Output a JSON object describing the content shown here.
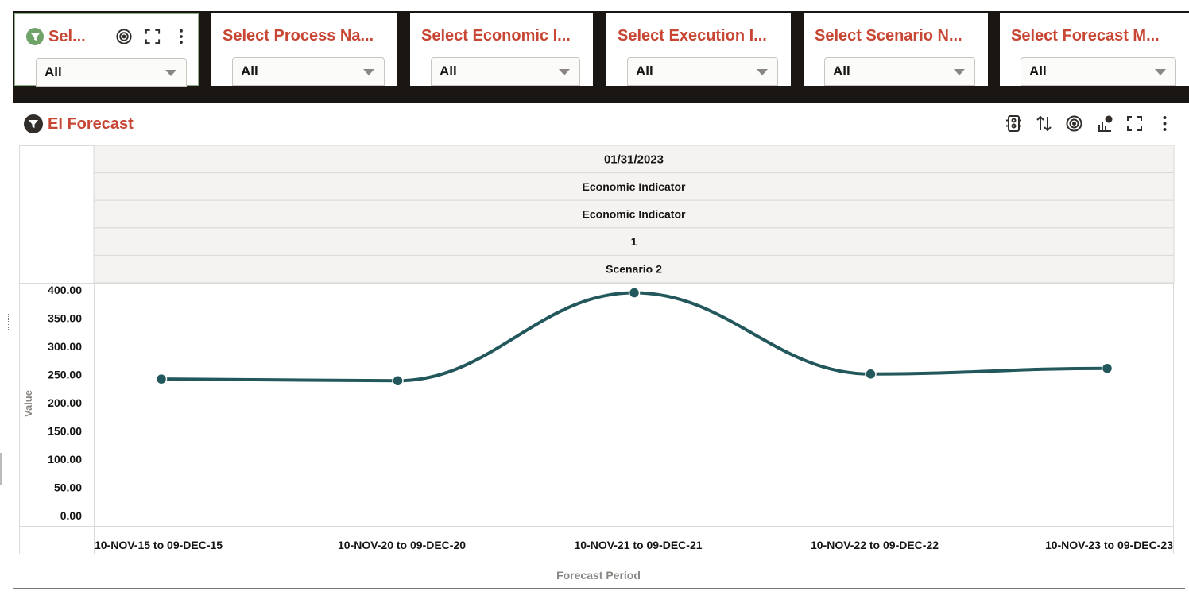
{
  "filters": [
    {
      "title": "Sel...",
      "value": "All",
      "has_icons": true
    },
    {
      "title": "Select Process Na...",
      "value": "All"
    },
    {
      "title": "Select Economic I...",
      "value": "All"
    },
    {
      "title": "Select Execution I...",
      "value": "All"
    },
    {
      "title": "Select Scenario N...",
      "value": "All"
    },
    {
      "title": "Select Forecast M...",
      "value": "All"
    }
  ],
  "panel": {
    "title": "EI Forecast",
    "tool_icons": [
      "legend-icon",
      "sort-icon",
      "target-icon",
      "chart-type-icon",
      "fullscreen-icon",
      "more-icon"
    ]
  },
  "chart_data": {
    "type": "line",
    "header_rows": [
      "01/31/2023",
      "Economic Indicator",
      "Economic Indicator",
      "1",
      "Scenario 2"
    ],
    "categories": [
      "10-NOV-15 to 09-DEC-15",
      "10-NOV-20 to 09-DEC-20",
      "10-NOV-21 to 09-DEC-21",
      "10-NOV-22 to 09-DEC-22",
      "10-NOV-23 to 09-DEC-23"
    ],
    "values": [
      242,
      239,
      395,
      251,
      261
    ],
    "ylim": [
      0,
      400
    ],
    "yticks": [
      "400.00",
      "350.00",
      "300.00",
      "250.00",
      "200.00",
      "150.00",
      "100.00",
      "50.00",
      "0.00"
    ],
    "ylabel": "Value",
    "xlabel": "Forecast Period",
    "line_color": "#22575c",
    "grid": false,
    "smooth": true
  }
}
